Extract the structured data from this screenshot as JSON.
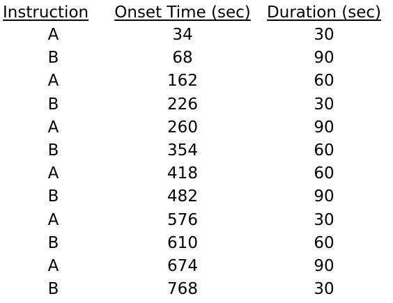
{
  "table": {
    "headers": [
      "Instruction",
      "Onset Time (sec)",
      "Duration (sec)"
    ],
    "rows": [
      [
        "A",
        "34",
        "30"
      ],
      [
        "B",
        "68",
        "90"
      ],
      [
        "A",
        "162",
        "60"
      ],
      [
        "B",
        "226",
        "30"
      ],
      [
        "A",
        "260",
        "90"
      ],
      [
        "B",
        "354",
        "60"
      ],
      [
        "A",
        "418",
        "60"
      ],
      [
        "B",
        "482",
        "90"
      ],
      [
        "A",
        "576",
        "30"
      ],
      [
        "B",
        "610",
        "60"
      ],
      [
        "A",
        "674",
        "90"
      ],
      [
        "B",
        "768",
        "30"
      ]
    ]
  }
}
